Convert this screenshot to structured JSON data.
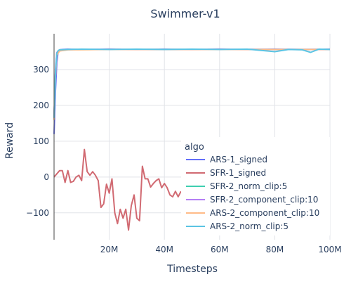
{
  "chart_data": {
    "type": "line",
    "title": "Swimmer-v1",
    "xlabel": "Timesteps",
    "ylabel": "Reward",
    "xlim": [
      0,
      100000000
    ],
    "ylim": [
      -175,
      400
    ],
    "xticks": [
      {
        "value": 20000000,
        "label": "20M"
      },
      {
        "value": 40000000,
        "label": "40M"
      },
      {
        "value": 60000000,
        "label": "60M"
      },
      {
        "value": 80000000,
        "label": "80M"
      },
      {
        "value": 100000000,
        "label": "100M"
      }
    ],
    "yticks": [
      {
        "value": -100,
        "label": "−100"
      },
      {
        "value": 0,
        "label": "0"
      },
      {
        "value": 100,
        "label": "100"
      },
      {
        "value": 200,
        "label": "200"
      },
      {
        "value": 300,
        "label": "300"
      }
    ],
    "grid": true,
    "legend": {
      "title": "algo",
      "position": "center-right"
    },
    "series": [
      {
        "name": "ARS-1_signed",
        "color": "#636efa",
        "x": [
          0,
          500000,
          1000000,
          1500000,
          2000000,
          3000000,
          5000000,
          10000000,
          20000000,
          30000000,
          40000000,
          50000000,
          60000000,
          70000000,
          80000000,
          90000000,
          100000000
        ],
        "y": [
          120,
          240,
          320,
          352,
          355,
          356,
          357,
          356,
          357,
          356,
          357,
          356,
          357,
          356,
          357,
          356,
          357
        ]
      },
      {
        "name": "SFR-1_signed",
        "color": "#d16a72",
        "x": [
          0,
          2000000,
          3000000,
          4000000,
          5000000,
          6000000,
          7000000,
          8000000,
          9000000,
          10000000,
          11000000,
          12000000,
          13000000,
          14000000,
          15000000,
          16000000,
          17000000,
          18000000,
          19000000,
          20000000,
          21000000,
          22000000,
          23000000,
          24000000,
          25000000,
          26000000,
          27000000,
          28000000,
          29000000,
          30000000,
          31000000,
          32000000,
          33000000,
          34000000,
          35000000,
          36000000,
          37000000,
          38000000,
          39000000,
          40000000,
          41000000,
          42000000,
          43000000,
          44000000,
          45000000,
          46000000
        ],
        "y": [
          0,
          18,
          18,
          -15,
          18,
          -15,
          -12,
          0,
          5,
          -10,
          77,
          15,
          5,
          15,
          5,
          -10,
          -85,
          -75,
          -20,
          -45,
          -5,
          -100,
          -130,
          -90,
          -115,
          -90,
          -148,
          -80,
          -50,
          -115,
          -122,
          30,
          -5,
          -5,
          -28,
          -18,
          -10,
          -5,
          -30,
          -18,
          -30,
          -50,
          -55,
          -40,
          -55,
          -40
        ]
      },
      {
        "name": "SFR-2_norm_clip:5",
        "color": "#3ecfb0",
        "x": [
          0,
          500000,
          1000000,
          2000000,
          5000000,
          20000000,
          40000000,
          60000000,
          80000000,
          100000000
        ],
        "y": [
          170,
          290,
          345,
          354,
          356,
          357,
          356,
          357,
          356,
          356
        ]
      },
      {
        "name": "SFR-2_component_clip:10",
        "color": "#b57ff5",
        "x": [
          0,
          500000,
          1000000,
          2000000,
          5000000,
          20000000,
          40000000,
          60000000,
          80000000,
          100000000
        ],
        "y": [
          170,
          300,
          348,
          354,
          356,
          357,
          356,
          357,
          356,
          356
        ]
      },
      {
        "name": "ARS-2_component_clip:10",
        "color": "#ffbb88",
        "x": [
          0,
          500000,
          1000000,
          2000000,
          5000000,
          20000000,
          40000000,
          60000000,
          80000000,
          100000000
        ],
        "y": [
          160,
          280,
          340,
          352,
          355,
          356,
          356,
          356,
          356,
          356
        ]
      },
      {
        "name": "ARS-2_norm_clip:5",
        "color": "#5bc4e3",
        "x": [
          0,
          500000,
          1000000,
          1500000,
          2000000,
          5000000,
          10000000,
          20000000,
          30000000,
          40000000,
          50000000,
          60000000,
          70000000,
          80000000,
          85000000,
          90000000,
          93000000,
          96000000,
          100000000
        ],
        "y": [
          165,
          290,
          345,
          353,
          355,
          356,
          357,
          356,
          357,
          356,
          357,
          356,
          357,
          350,
          356,
          355,
          348,
          357,
          356
        ]
      }
    ]
  }
}
